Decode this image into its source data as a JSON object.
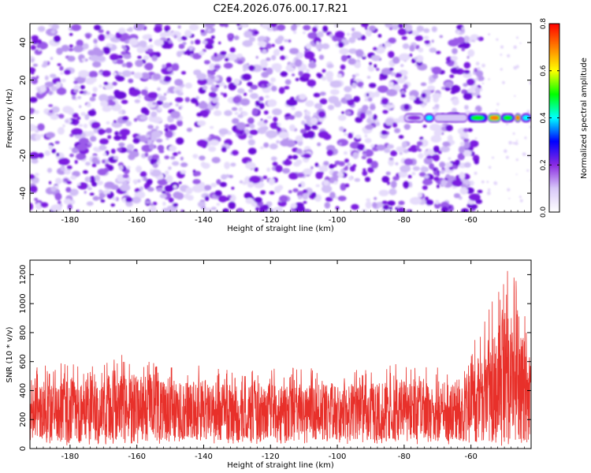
{
  "title": "C2E4.2026.076.00.17.R21",
  "chart_data": [
    {
      "type": "heatmap",
      "xlabel": "Height of straight line (km)",
      "ylabel": "Frequency (Hz)",
      "xlim": [
        -192,
        -42
      ],
      "ylim": [
        -50,
        50
      ],
      "xticks": [
        -180,
        -160,
        -140,
        -120,
        -100,
        -80,
        -60
      ],
      "yticks": [
        -40,
        -20,
        0,
        20,
        40
      ],
      "colorbar": {
        "label": "Normalized spectral amplitude",
        "range": [
          0,
          0.8
        ],
        "ticks": [
          "0.0",
          "0.2",
          "0.4",
          "0.6",
          "0.8"
        ],
        "colormap": [
          "#ffffff",
          "#d8c8f8",
          "#8a2be2",
          "#0000ff",
          "#00ffff",
          "#00ff00",
          "#ffff00",
          "#ff8000",
          "#ff0000"
        ]
      },
      "noise_level": 0.1,
      "noise_cutoff_km": -59,
      "signal_band": {
        "frequency_hz": 0,
        "segments": [
          {
            "x_start": -80,
            "x_end": -74,
            "amplitude": 0.2
          },
          {
            "x_start": -74,
            "x_end": -71,
            "amplitude": 0.4
          },
          {
            "x_start": -71,
            "x_end": -61,
            "amplitude": 0.15
          },
          {
            "x_start": -61,
            "x_end": -55,
            "amplitude": 0.45
          },
          {
            "x_start": -55,
            "x_end": -51,
            "amplitude": 0.7
          },
          {
            "x_start": -51,
            "x_end": -47,
            "amplitude": 0.5
          },
          {
            "x_start": -47,
            "x_end": -45,
            "amplitude": 0.7
          },
          {
            "x_start": -45,
            "x_end": -42,
            "amplitude": 0.4
          }
        ]
      }
    },
    {
      "type": "line",
      "xlabel": "Height of straight line (km)",
      "ylabel": "SNR (10 * v/v)",
      "xlim": [
        -192,
        -42
      ],
      "ylim": [
        0,
        1300
      ],
      "xticks": [
        -180,
        -160,
        -140,
        -120,
        -100,
        -80,
        -60
      ],
      "yticks": [
        0,
        200,
        400,
        600,
        800,
        1000,
        1200
      ],
      "series": [
        {
          "name": "SNR",
          "color": "#e8302a",
          "envelope": [
            {
              "x": -192,
              "low": 30,
              "high": 560
            },
            {
              "x": -180,
              "low": 20,
              "high": 600
            },
            {
              "x": -170,
              "low": 30,
              "high": 640
            },
            {
              "x": -160,
              "low": 20,
              "high": 650
            },
            {
              "x": -150,
              "low": 30,
              "high": 560
            },
            {
              "x": -140,
              "low": 30,
              "high": 580
            },
            {
              "x": -130,
              "low": 30,
              "high": 540
            },
            {
              "x": -120,
              "low": 30,
              "high": 560
            },
            {
              "x": -110,
              "low": 30,
              "high": 560
            },
            {
              "x": -100,
              "low": 30,
              "high": 560
            },
            {
              "x": -90,
              "low": 30,
              "high": 540
            },
            {
              "x": -80,
              "low": 30,
              "high": 600
            },
            {
              "x": -70,
              "low": 30,
              "high": 560
            },
            {
              "x": -62,
              "low": 30,
              "high": 540
            },
            {
              "x": -60,
              "low": 40,
              "high": 700
            },
            {
              "x": -55,
              "low": 20,
              "high": 950
            },
            {
              "x": -50,
              "low": 10,
              "high": 1250
            },
            {
              "x": -46,
              "low": 10,
              "high": 1200
            },
            {
              "x": -42,
              "low": 20,
              "high": 700
            }
          ]
        }
      ]
    }
  ]
}
